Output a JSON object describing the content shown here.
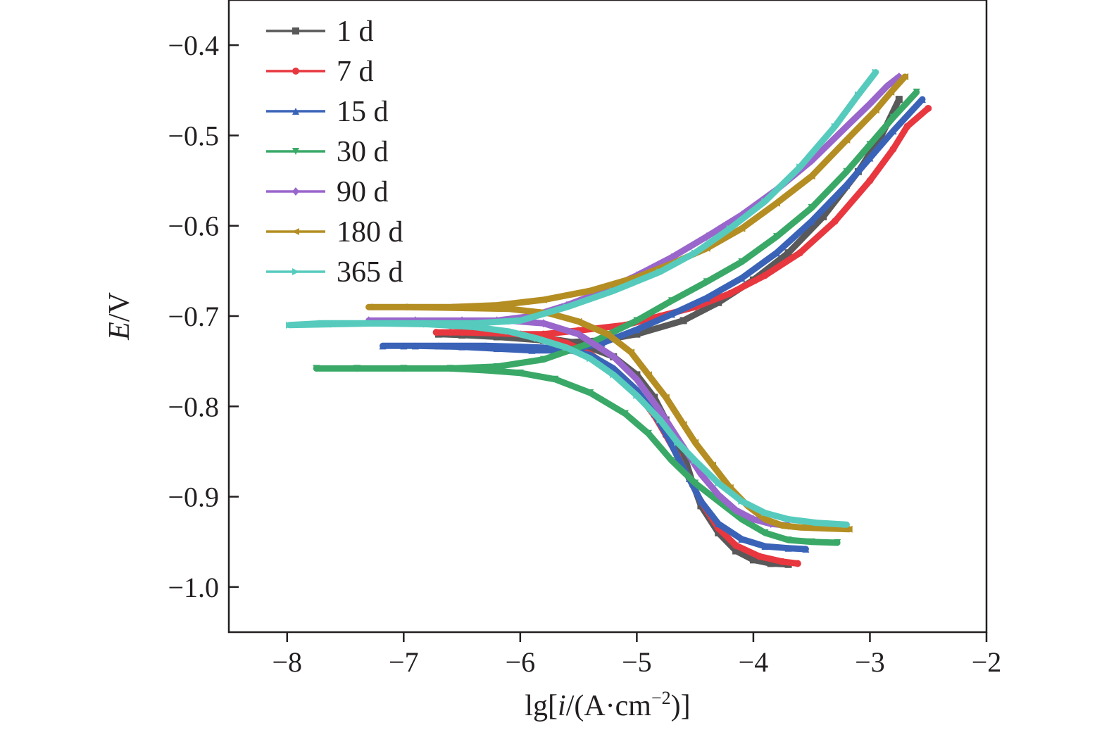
{
  "chart_data": {
    "type": "line",
    "title": "",
    "xlabel": {
      "prefix": "lg[",
      "italic": "i",
      "middle": "/(A·cm",
      "superscript": "−2",
      "suffix": ")]"
    },
    "ylabel": {
      "italic": "E",
      "rest": "/V"
    },
    "xlim": [
      -8.5,
      -2
    ],
    "ylim": [
      -1.05,
      -0.35
    ],
    "xticks": [
      {
        "value": -8,
        "label": "−8"
      },
      {
        "value": -7,
        "label": "−7"
      },
      {
        "value": -6,
        "label": "−6"
      },
      {
        "value": -5,
        "label": "−5"
      },
      {
        "value": -4,
        "label": "−4"
      },
      {
        "value": -3,
        "label": "−3"
      },
      {
        "value": -2,
        "label": "−2"
      }
    ],
    "yticks": [
      {
        "value": -0.4,
        "label": "−0.4"
      },
      {
        "value": -0.5,
        "label": "−0.5"
      },
      {
        "value": -0.6,
        "label": "−0.6"
      },
      {
        "value": -0.7,
        "label": "−0.7"
      },
      {
        "value": -0.8,
        "label": "−0.8"
      },
      {
        "value": -0.9,
        "label": "−0.9"
      },
      {
        "value": -1.0,
        "label": "−1.0"
      }
    ],
    "grid": false,
    "legend_position": "top-left",
    "series": [
      {
        "name": "1 d",
        "color": "#595959",
        "marker": "square",
        "x": [
          -3.7,
          -3.85,
          -4.0,
          -4.15,
          -4.3,
          -4.45,
          -4.52,
          -4.58,
          -4.65,
          -4.75,
          -4.85,
          -5.0,
          -5.2,
          -5.5,
          -5.8,
          -6.0,
          -6.3,
          -6.6,
          -6.7,
          -6.5,
          -6.2,
          -5.8,
          -5.6,
          -5.3,
          -5.0,
          -4.6,
          -4.3,
          -4.0,
          -3.7,
          -3.4,
          -3.1,
          -2.9,
          -2.75
        ],
        "y": [
          -0.975,
          -0.974,
          -0.97,
          -0.96,
          -0.94,
          -0.91,
          -0.885,
          -0.86,
          -0.84,
          -0.815,
          -0.79,
          -0.765,
          -0.745,
          -0.73,
          -0.724,
          -0.722,
          -0.72,
          -0.719,
          -0.72,
          -0.721,
          -0.723,
          -0.727,
          -0.729,
          -0.727,
          -0.72,
          -0.705,
          -0.685,
          -0.66,
          -0.63,
          -0.59,
          -0.54,
          -0.5,
          -0.46
        ]
      },
      {
        "name": "7 d",
        "color": "#e8373f",
        "marker": "circle",
        "x": [
          -3.62,
          -3.75,
          -3.95,
          -4.15,
          -4.3,
          -4.45,
          -4.55,
          -4.65,
          -4.75,
          -4.85,
          -5.0,
          -5.2,
          -5.4,
          -5.6,
          -5.8,
          -6.1,
          -6.4,
          -6.6,
          -6.72,
          -6.5,
          -6.2,
          -6.0,
          -5.8,
          -5.5,
          -5.1,
          -4.8,
          -4.5,
          -4.2,
          -3.9,
          -3.6,
          -3.3,
          -3.0,
          -2.8,
          -2.68,
          -2.5
        ],
        "y": [
          -0.974,
          -0.972,
          -0.966,
          -0.954,
          -0.935,
          -0.905,
          -0.88,
          -0.855,
          -0.832,
          -0.81,
          -0.785,
          -0.76,
          -0.742,
          -0.73,
          -0.723,
          -0.719,
          -0.718,
          -0.718,
          -0.718,
          -0.718,
          -0.719,
          -0.72,
          -0.72,
          -0.716,
          -0.71,
          -0.7,
          -0.69,
          -0.675,
          -0.655,
          -0.63,
          -0.595,
          -0.55,
          -0.515,
          -0.49,
          -0.47
        ]
      },
      {
        "name": "15 d",
        "color": "#3a63b8",
        "marker": "triangle-up",
        "x": [
          -3.55,
          -3.7,
          -3.9,
          -4.1,
          -4.3,
          -4.45,
          -4.55,
          -4.65,
          -4.75,
          -4.85,
          -5.0,
          -5.2,
          -5.4,
          -5.6,
          -5.8,
          -6.0,
          -6.3,
          -6.7,
          -7.0,
          -7.18,
          -6.9,
          -6.5,
          -6.2,
          -5.9,
          -5.6,
          -5.3,
          -5.0,
          -4.7,
          -4.4,
          -4.1,
          -3.8,
          -3.5,
          -3.2,
          -3.0,
          -2.8,
          -2.55
        ],
        "y": [
          -0.958,
          -0.957,
          -0.955,
          -0.947,
          -0.93,
          -0.905,
          -0.88,
          -0.856,
          -0.83,
          -0.808,
          -0.782,
          -0.758,
          -0.743,
          -0.737,
          -0.735,
          -0.734,
          -0.733,
          -0.733,
          -0.733,
          -0.733,
          -0.733,
          -0.734,
          -0.736,
          -0.738,
          -0.738,
          -0.73,
          -0.715,
          -0.698,
          -0.68,
          -0.658,
          -0.63,
          -0.595,
          -0.555,
          -0.525,
          -0.495,
          -0.46
        ]
      },
      {
        "name": "30 d",
        "color": "#3aa968",
        "marker": "triangle-down",
        "x": [
          -3.28,
          -3.5,
          -3.7,
          -3.9,
          -4.1,
          -4.3,
          -4.5,
          -4.7,
          -4.9,
          -5.1,
          -5.4,
          -5.7,
          -6.0,
          -6.3,
          -6.6,
          -7.0,
          -7.4,
          -7.75,
          -7.4,
          -7.0,
          -6.6,
          -6.2,
          -5.8,
          -5.4,
          -5.0,
          -4.7,
          -4.4,
          -4.1,
          -3.8,
          -3.5,
          -3.2,
          -3.0,
          -2.8,
          -2.6
        ],
        "y": [
          -0.951,
          -0.95,
          -0.948,
          -0.94,
          -0.925,
          -0.905,
          -0.885,
          -0.86,
          -0.83,
          -0.808,
          -0.785,
          -0.77,
          -0.763,
          -0.76,
          -0.758,
          -0.758,
          -0.758,
          -0.758,
          -0.758,
          -0.758,
          -0.758,
          -0.756,
          -0.748,
          -0.73,
          -0.705,
          -0.683,
          -0.662,
          -0.64,
          -0.612,
          -0.58,
          -0.54,
          -0.51,
          -0.48,
          -0.452
        ]
      },
      {
        "name": "90 d",
        "color": "#9966cc",
        "marker": "diamond",
        "x": [
          -3.7,
          -3.85,
          -4.0,
          -4.15,
          -4.3,
          -4.45,
          -4.55,
          -4.65,
          -4.8,
          -5.0,
          -5.2,
          -5.5,
          -5.8,
          -6.1,
          -6.5,
          -6.9,
          -7.3,
          -6.9,
          -6.5,
          -6.2,
          -5.9,
          -5.6,
          -5.3,
          -5.0,
          -4.7,
          -4.4,
          -4.1,
          -3.8,
          -3.5,
          -3.2,
          -3.0,
          -2.85,
          -2.75
        ],
        "y": [
          -0.932,
          -0.93,
          -0.925,
          -0.915,
          -0.898,
          -0.875,
          -0.855,
          -0.835,
          -0.805,
          -0.77,
          -0.745,
          -0.72,
          -0.708,
          -0.705,
          -0.705,
          -0.705,
          -0.705,
          -0.706,
          -0.706,
          -0.705,
          -0.7,
          -0.688,
          -0.673,
          -0.655,
          -0.635,
          -0.612,
          -0.588,
          -0.56,
          -0.528,
          -0.49,
          -0.465,
          -0.445,
          -0.435
        ]
      },
      {
        "name": "180 d",
        "color": "#b48e22",
        "marker": "triangle-left",
        "x": [
          -3.18,
          -3.4,
          -3.6,
          -3.75,
          -3.9,
          -4.05,
          -4.2,
          -4.35,
          -4.5,
          -4.6,
          -4.75,
          -4.9,
          -5.05,
          -5.25,
          -5.5,
          -5.75,
          -6.1,
          -6.5,
          -7.0,
          -7.3,
          -7.0,
          -6.6,
          -6.2,
          -5.8,
          -5.4,
          -5.0,
          -4.7,
          -4.4,
          -4.1,
          -3.8,
          -3.5,
          -3.2,
          -2.95,
          -2.82,
          -2.7
        ],
        "y": [
          -0.936,
          -0.935,
          -0.934,
          -0.932,
          -0.925,
          -0.91,
          -0.89,
          -0.865,
          -0.84,
          -0.82,
          -0.79,
          -0.765,
          -0.74,
          -0.72,
          -0.706,
          -0.697,
          -0.692,
          -0.691,
          -0.69,
          -0.69,
          -0.69,
          -0.69,
          -0.688,
          -0.682,
          -0.672,
          -0.657,
          -0.642,
          -0.625,
          -0.603,
          -0.575,
          -0.545,
          -0.505,
          -0.472,
          -0.452,
          -0.435
        ]
      },
      {
        "name": "365 d",
        "color": "#56cbbd",
        "marker": "triangle-right",
        "x": [
          -3.2,
          -3.45,
          -3.7,
          -3.9,
          -4.1,
          -4.3,
          -4.5,
          -4.65,
          -4.8,
          -5.0,
          -5.2,
          -5.4,
          -5.6,
          -5.85,
          -6.1,
          -6.4,
          -6.8,
          -7.3,
          -7.7,
          -7.98,
          -7.6,
          -7.2,
          -6.8,
          -6.4,
          -6.0,
          -5.6,
          -5.2,
          -4.8,
          -4.5,
          -4.2,
          -3.9,
          -3.6,
          -3.3,
          -3.1,
          -2.95
        ],
        "y": [
          -0.931,
          -0.929,
          -0.925,
          -0.918,
          -0.905,
          -0.885,
          -0.86,
          -0.84,
          -0.815,
          -0.788,
          -0.765,
          -0.747,
          -0.735,
          -0.725,
          -0.717,
          -0.712,
          -0.709,
          -0.708,
          -0.708,
          -0.71,
          -0.709,
          -0.708,
          -0.708,
          -0.708,
          -0.705,
          -0.69,
          -0.672,
          -0.651,
          -0.63,
          -0.603,
          -0.573,
          -0.535,
          -0.49,
          -0.455,
          -0.43
        ]
      }
    ]
  }
}
